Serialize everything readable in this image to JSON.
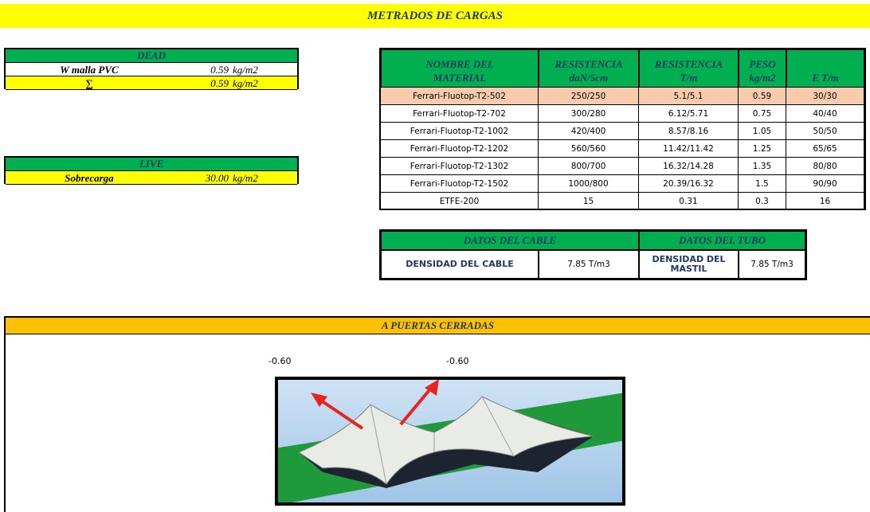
{
  "title": "METRADOS DE CARGAS",
  "dead": {
    "header": "DEAD",
    "rows": [
      [
        "W malla PVC",
        "0.59",
        "kg/m2"
      ],
      [
        "∑",
        "0.59",
        "kg/m2"
      ]
    ]
  },
  "live": {
    "header": "LIVE",
    "rows": [
      [
        "Sobrecarga",
        "30.00",
        "kg/m2"
      ]
    ]
  },
  "materials": {
    "header": [
      [
        "NOMBRE DEL",
        "MATERIAL"
      ],
      [
        "RESISTENCIA",
        "daN/5cm"
      ],
      [
        "RESISTENCIA",
        "T/m"
      ],
      [
        "PESO",
        "kg/m2"
      ],
      [
        "E T/m"
      ]
    ],
    "rows": [
      [
        "Ferrari-Fluotop-T2-502",
        "250/250",
        "5.1/5.1",
        "0.59",
        "30/30"
      ],
      [
        "Ferrari-Fluotop-T2-702",
        "300/280",
        "6.12/5.71",
        "0.75",
        "40/40"
      ],
      [
        "Ferrari-Fluotop-T2-1002",
        "420/400",
        "8.57/8.16",
        "1.05",
        "50/50"
      ],
      [
        "Ferrari-Fluotop-T2-1202",
        "560/560",
        "11.42/11.42",
        "1.25",
        "65/65"
      ],
      [
        "Ferrari-Fluotop-T2-1302",
        "800/700",
        "16.32/14.28",
        "1.35",
        "80/80"
      ],
      [
        "Ferrari-Fluotop-T2-1502",
        "1000/800",
        "20.39/16.32",
        "1.5",
        "90/90"
      ],
      [
        "ETFE-200",
        "15",
        "0.31",
        "0.3",
        "16"
      ]
    ]
  },
  "cable": {
    "header": [
      "DATOS DEL CABLE",
      "DATOS DEL TUBO"
    ],
    "row": [
      "DENSIDAD DEL CABLE",
      "7.85 T/m3",
      "DENSIDAD DEL MASTIL",
      "7.85 T/m3"
    ]
  },
  "section": {
    "title": "A PUERTAS CERRADAS",
    "labels": [
      "-0.60",
      "-0.60"
    ]
  }
}
